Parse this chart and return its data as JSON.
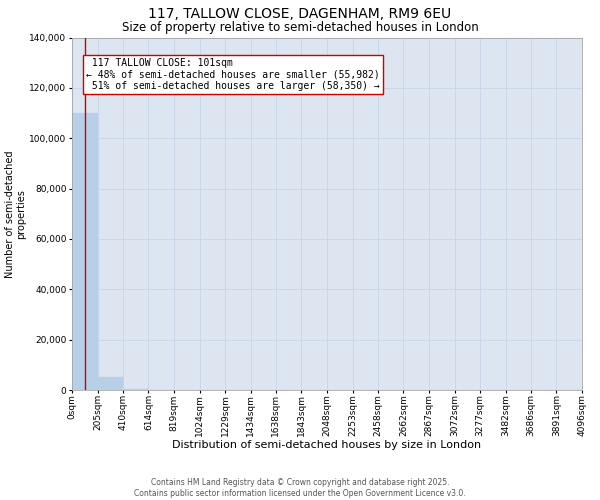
{
  "title_line1": "117, TALLOW CLOSE, DAGENHAM, RM9 6EU",
  "title_line2": "Size of property relative to semi-detached houses in London",
  "xlabel": "Distribution of semi-detached houses by size in London",
  "ylabel": "Number of semi-detached\nproperties",
  "property_size": 101,
  "property_label": "117 TALLOW CLOSE: 101sqm",
  "pct_smaller": 48,
  "n_smaller": 55982,
  "pct_larger": 51,
  "n_larger": 58350,
  "bar_edges": [
    0,
    205,
    410,
    614,
    819,
    1024,
    1229,
    1434,
    1638,
    1843,
    2048,
    2253,
    2458,
    2662,
    2867,
    3072,
    3277,
    3482,
    3686,
    3891,
    4096
  ],
  "bar_heights": [
    110000,
    5000,
    300,
    150,
    80,
    55,
    40,
    30,
    22,
    18,
    14,
    11,
    9,
    7,
    6,
    5,
    4,
    3,
    2,
    2
  ],
  "bar_color": "#b8cfe8",
  "bar_edgecolor": "#b8cfe8",
  "grid_color": "#c8d4e8",
  "background_color": "#dde6f0",
  "vline_color": "#cc0000",
  "annotation_box_edgecolor": "#cc0000",
  "ylim": [
    0,
    140000
  ],
  "yticks": [
    0,
    20000,
    40000,
    60000,
    80000,
    100000,
    120000,
    140000
  ],
  "tick_labels": [
    "0sqm",
    "205sqm",
    "410sqm",
    "614sqm",
    "819sqm",
    "1024sqm",
    "1229sqm",
    "1434sqm",
    "1638sqm",
    "1843sqm",
    "2048sqm",
    "2253sqm",
    "2458sqm",
    "2662sqm",
    "2867sqm",
    "3072sqm",
    "3277sqm",
    "3482sqm",
    "3686sqm",
    "3891sqm",
    "4096sqm"
  ],
  "footer_line1": "Contains HM Land Registry data © Crown copyright and database right 2025.",
  "footer_line2": "Contains public sector information licensed under the Open Government Licence v3.0.",
  "title_fontsize": 10,
  "subtitle_fontsize": 8.5,
  "axis_label_fontsize": 7,
  "tick_fontsize": 6.5,
  "annotation_fontsize": 7,
  "footer_fontsize": 5.5,
  "ylabel_fontsize": 7
}
